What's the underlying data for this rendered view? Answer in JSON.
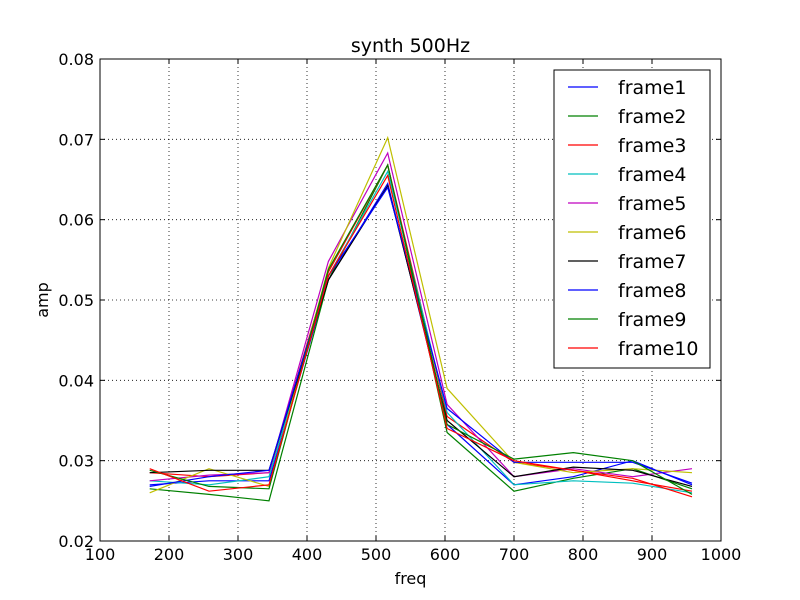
{
  "chart_data": {
    "type": "line",
    "title": "synth 500Hz",
    "xlabel": "freq",
    "ylabel": "amp",
    "xlim": [
      100,
      1000
    ],
    "ylim": [
      0.02,
      0.08
    ],
    "xticks": [
      "100",
      "200",
      "300",
      "400",
      "500",
      "600",
      "700",
      "800",
      "900",
      "1000"
    ],
    "yticks": [
      "0.02",
      "0.03",
      "0.04",
      "0.05",
      "0.06",
      "0.07",
      "0.08"
    ],
    "grid": true,
    "legend_position": "top-right",
    "x": [
      172,
      258,
      345,
      431,
      517,
      603,
      700,
      786,
      872,
      958
    ],
    "series": [
      {
        "name": "frame1",
        "color": "#0000ff",
        "values": [
          0.027,
          0.0275,
          0.0275,
          0.0525,
          0.0645,
          0.0345,
          0.027,
          0.028,
          0.03,
          0.027
        ]
      },
      {
        "name": "frame2",
        "color": "#008000",
        "values": [
          0.0265,
          0.0258,
          0.025,
          0.0525,
          0.0668,
          0.0335,
          0.0262,
          0.0278,
          0.029,
          0.0265
        ]
      },
      {
        "name": "frame3",
        "color": "#ff0000",
        "values": [
          0.0285,
          0.028,
          0.0285,
          0.0535,
          0.0668,
          0.0355,
          0.0298,
          0.0288,
          0.0275,
          0.0262
        ]
      },
      {
        "name": "frame4",
        "color": "#00bfbf",
        "values": [
          0.0275,
          0.027,
          0.028,
          0.053,
          0.066,
          0.036,
          0.027,
          0.0275,
          0.0272,
          0.026
        ]
      },
      {
        "name": "frame5",
        "color": "#bf00bf",
        "values": [
          0.0275,
          0.0282,
          0.0285,
          0.0548,
          0.0683,
          0.037,
          0.028,
          0.029,
          0.028,
          0.029
        ]
      },
      {
        "name": "frame6",
        "color": "#bfbf00",
        "values": [
          0.026,
          0.029,
          0.0268,
          0.054,
          0.0702,
          0.039,
          0.0298,
          0.0285,
          0.029,
          0.0285
        ]
      },
      {
        "name": "frame7",
        "color": "#000000",
        "values": [
          0.0285,
          0.0288,
          0.0288,
          0.0525,
          0.0642,
          0.035,
          0.028,
          0.0292,
          0.0288,
          0.0268
        ]
      },
      {
        "name": "frame8",
        "color": "#0000ff",
        "values": [
          0.0268,
          0.028,
          0.0288,
          0.053,
          0.064,
          0.0365,
          0.0298,
          0.0298,
          0.0298,
          0.0272
        ]
      },
      {
        "name": "frame9",
        "color": "#008000",
        "values": [
          0.0288,
          0.0268,
          0.0265,
          0.0538,
          0.0668,
          0.0345,
          0.0302,
          0.031,
          0.03,
          0.0258
        ]
      },
      {
        "name": "frame10",
        "color": "#ff0000",
        "values": [
          0.029,
          0.0262,
          0.027,
          0.053,
          0.0655,
          0.034,
          0.03,
          0.0288,
          0.0278,
          0.0255
        ]
      }
    ]
  }
}
